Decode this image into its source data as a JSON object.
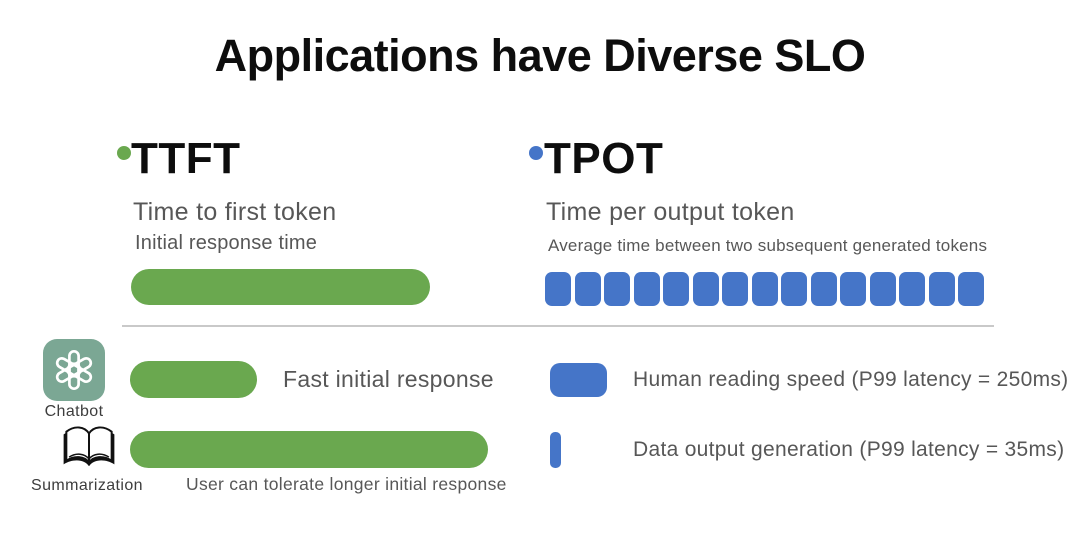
{
  "title": "Applications have Diverse SLO",
  "colors": {
    "green": "#6aa84f",
    "blue": "#4575c8",
    "icon-teal": "#7ba794",
    "text-gray": "#575757",
    "label-dark": "#3d3d3d",
    "divider": "#c9c9c9",
    "ink": "#0d0d0d"
  },
  "metrics": {
    "ttft": {
      "abbr": "TTFT",
      "name": "Time to first token",
      "desc": "Initial response time"
    },
    "tpot": {
      "abbr": "TPOT",
      "name": "Time per output token",
      "desc": "Average time between two subsequent generated tokens",
      "token_count": 15
    }
  },
  "apps": [
    {
      "label": "Chatbot",
      "icon": "openai-logo",
      "ttft_caption": "Fast initial response",
      "tpot_caption": "Human reading speed (P99 latency = 250ms)"
    },
    {
      "label": "Summarization",
      "icon": "open-book",
      "ttft_caption": "User can tolerate longer initial response",
      "tpot_caption": "Data output generation (P99 latency = 35ms)"
    }
  ]
}
